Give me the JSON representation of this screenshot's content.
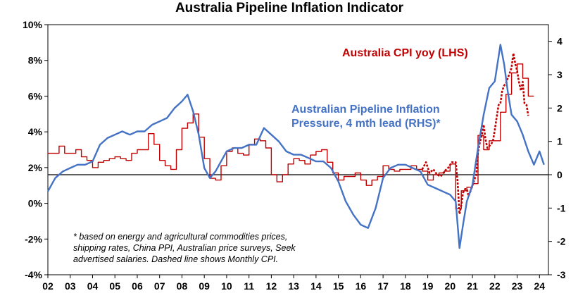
{
  "chart_data": {
    "type": "line",
    "title": "Australia Pipeline Inflation Indicator",
    "left_axis": {
      "ylim": [
        -4,
        10
      ],
      "ticks": [
        "10%",
        "8%",
        "6%",
        "4%",
        "2%",
        "0%",
        "-2%",
        "-4%"
      ],
      "tick_values": [
        10,
        8,
        6,
        4,
        2,
        0,
        -2,
        -4
      ]
    },
    "right_axis": {
      "ylim": [
        -3,
        4.5
      ],
      "ticks": [
        "4",
        "3",
        "2",
        "1",
        "0",
        "-1",
        "-2",
        "-3"
      ],
      "tick_values": [
        4,
        3,
        2,
        1,
        0,
        -1,
        -2,
        -3
      ]
    },
    "x_axis": {
      "xlim": [
        2002.0,
        2024.4
      ],
      "ticks": [
        "02",
        "03",
        "04",
        "05",
        "06",
        "07",
        "08",
        "09",
        "10",
        "11",
        "12",
        "13",
        "14",
        "15",
        "16",
        "17",
        "18",
        "19",
        "20",
        "21",
        "22",
        "23",
        "24"
      ],
      "tick_values": [
        2002,
        2003,
        2004,
        2005,
        2006,
        2007,
        2008,
        2009,
        2010,
        2011,
        2012,
        2013,
        2014,
        2015,
        2016,
        2017,
        2018,
        2019,
        2020,
        2021,
        2022,
        2023,
        2024
      ]
    },
    "series": [
      {
        "name": "Australia CPI yoy (LHS)",
        "axis": "left",
        "color": "#c00000",
        "style": "step",
        "x": [
          2002.0,
          2002.5,
          2002.75,
          2003.0,
          2003.25,
          2003.5,
          2003.75,
          2004.0,
          2004.25,
          2004.5,
          2004.75,
          2005.0,
          2005.25,
          2005.5,
          2005.75,
          2006.0,
          2006.25,
          2006.5,
          2006.75,
          2007.0,
          2007.25,
          2007.5,
          2007.75,
          2008.0,
          2008.25,
          2008.5,
          2008.75,
          2009.0,
          2009.25,
          2009.5,
          2009.75,
          2010.0,
          2010.25,
          2010.5,
          2010.75,
          2011.0,
          2011.25,
          2011.5,
          2011.75,
          2012.0,
          2012.25,
          2012.5,
          2012.75,
          2013.0,
          2013.25,
          2013.5,
          2013.75,
          2014.0,
          2014.25,
          2014.5,
          2014.75,
          2015.0,
          2015.25,
          2015.5,
          2015.75,
          2016.0,
          2016.25,
          2016.5,
          2016.75,
          2017.0,
          2017.25,
          2017.5,
          2017.75,
          2018.0,
          2018.25,
          2018.5,
          2018.75,
          2019.0,
          2019.25,
          2019.5,
          2019.75,
          2020.0,
          2020.25,
          2020.5,
          2020.75,
          2021.0,
          2021.25,
          2021.5,
          2021.75,
          2022.0,
          2022.25,
          2022.5,
          2022.75,
          2023.0,
          2023.25,
          2023.5
        ],
        "values": [
          2.8,
          3.2,
          2.8,
          2.8,
          3.0,
          2.6,
          2.4,
          2.0,
          2.3,
          2.4,
          2.5,
          2.6,
          2.5,
          2.4,
          2.8,
          3.0,
          3.0,
          3.9,
          3.3,
          2.4,
          2.1,
          1.9,
          3.0,
          4.2,
          4.5,
          5.0,
          3.7,
          2.5,
          1.4,
          1.3,
          2.1,
          2.9,
          3.1,
          2.8,
          2.7,
          3.3,
          3.6,
          3.5,
          3.1,
          1.6,
          1.2,
          1.6,
          2.2,
          2.5,
          2.4,
          2.2,
          2.7,
          2.9,
          3.0,
          2.3,
          1.7,
          1.3,
          1.5,
          1.5,
          1.7,
          1.3,
          1.0,
          1.3,
          1.5,
          2.1,
          1.9,
          1.8,
          1.9,
          1.9,
          2.1,
          1.9,
          1.8,
          1.3,
          1.6,
          1.7,
          1.8,
          2.2,
          -0.3,
          0.7,
          0.9,
          1.1,
          3.8,
          3.0,
          3.5,
          3.5,
          5.1,
          6.1,
          7.3,
          7.8,
          7.0,
          6.0
        ],
        "x_end": 2023.75
      },
      {
        "name": "Monthly CPI (dashed)",
        "axis": "left",
        "color": "#c00000",
        "style": "dashed",
        "x": [
          2018.75,
          2018.92,
          2019.08,
          2019.25,
          2019.42,
          2019.58,
          2019.75,
          2019.92,
          2020.08,
          2020.25,
          2020.33,
          2020.42,
          2020.5,
          2020.58,
          2020.67,
          2020.75,
          2020.83,
          2020.92,
          2021.0,
          2021.08,
          2021.17,
          2021.25,
          2021.33,
          2021.42,
          2021.5,
          2021.58,
          2021.67,
          2021.75,
          2021.83,
          2021.92,
          2022.0,
          2022.08,
          2022.17,
          2022.25,
          2022.33,
          2022.42,
          2022.5,
          2022.58,
          2022.67,
          2022.75,
          2022.83,
          2022.92,
          2023.0,
          2023.08,
          2023.17,
          2023.25,
          2023.33,
          2023.42,
          2023.5
        ],
        "values": [
          1.9,
          2.3,
          1.7,
          1.9,
          1.6,
          1.5,
          1.8,
          2.0,
          2.3,
          2.3,
          1.3,
          -0.6,
          -0.1,
          0.6,
          0.8,
          0.8,
          0.4,
          0.7,
          1.0,
          1.3,
          1.6,
          2.9,
          3.4,
          3.8,
          4.4,
          3.6,
          3.1,
          3.2,
          3.3,
          3.5,
          4.1,
          4.8,
          5.5,
          5.6,
          6.3,
          6.6,
          6.7,
          7.0,
          7.3,
          7.6,
          8.4,
          7.8,
          7.4,
          6.8,
          6.3,
          6.8,
          5.6,
          5.5,
          4.9
        ]
      },
      {
        "name": "Australian Pipeline Inflation Pressure, 4 mth lead (RHS)",
        "axis": "right",
        "color": "#4472c4",
        "style": "solid",
        "x": [
          2002.0,
          2002.33,
          2002.67,
          2003.0,
          2003.33,
          2003.67,
          2004.0,
          2004.33,
          2004.67,
          2005.0,
          2005.33,
          2005.67,
          2006.0,
          2006.33,
          2006.67,
          2007.0,
          2007.33,
          2007.67,
          2008.0,
          2008.25,
          2008.5,
          2008.75,
          2009.0,
          2009.25,
          2009.5,
          2009.75,
          2010.0,
          2010.33,
          2010.67,
          2011.0,
          2011.33,
          2011.67,
          2012.0,
          2012.33,
          2012.67,
          2013.0,
          2013.33,
          2013.67,
          2014.0,
          2014.33,
          2014.67,
          2015.0,
          2015.33,
          2015.67,
          2016.0,
          2016.33,
          2016.67,
          2017.0,
          2017.33,
          2017.67,
          2018.0,
          2018.33,
          2018.67,
          2019.0,
          2019.33,
          2019.67,
          2020.0,
          2020.25,
          2020.42,
          2020.58,
          2020.75,
          2021.0,
          2021.25,
          2021.5,
          2021.75,
          2022.0,
          2022.25,
          2022.42,
          2022.58,
          2022.75,
          2023.0,
          2023.25,
          2023.5,
          2023.75,
          2024.0,
          2024.2
        ],
        "values": [
          -0.5,
          -0.1,
          0.1,
          0.2,
          0.3,
          0.3,
          0.4,
          0.9,
          1.1,
          1.2,
          1.3,
          1.2,
          1.3,
          1.3,
          1.5,
          1.6,
          1.7,
          2.0,
          2.2,
          2.4,
          1.9,
          1.2,
          0.2,
          -0.1,
          0.1,
          0.4,
          0.7,
          0.8,
          0.8,
          0.9,
          0.9,
          1.4,
          1.2,
          1.0,
          0.7,
          0.6,
          0.6,
          0.5,
          0.4,
          0.4,
          0.2,
          -0.2,
          -0.8,
          -1.2,
          -1.5,
          -1.6,
          -1.0,
          -0.1,
          0.2,
          0.3,
          0.3,
          0.2,
          0.1,
          -0.3,
          -0.4,
          -0.5,
          -0.6,
          -0.8,
          -2.2,
          -1.5,
          -0.8,
          -0.3,
          0.8,
          1.8,
          2.6,
          2.8,
          3.9,
          3.3,
          2.5,
          1.8,
          1.6,
          1.2,
          0.7,
          0.3,
          0.7,
          0.3
        ]
      }
    ],
    "annotations": {
      "cpi_label": "Australia CPI yoy (LHS)",
      "pipeline_label_line1": "Australian Pipeline Inflation",
      "pipeline_label_line2": "Pressure, 4 mth lead (RHS)*",
      "footnote_line1": "* based on energy and agricultural commodities prices,",
      "footnote_line2": "shipping rates, China PPI, Australian price surveys, Seek",
      "footnote_line3": "advertised salaries. Dashed line shows Monthly CPI."
    },
    "grid": false,
    "zero_line_right_axis": true
  }
}
